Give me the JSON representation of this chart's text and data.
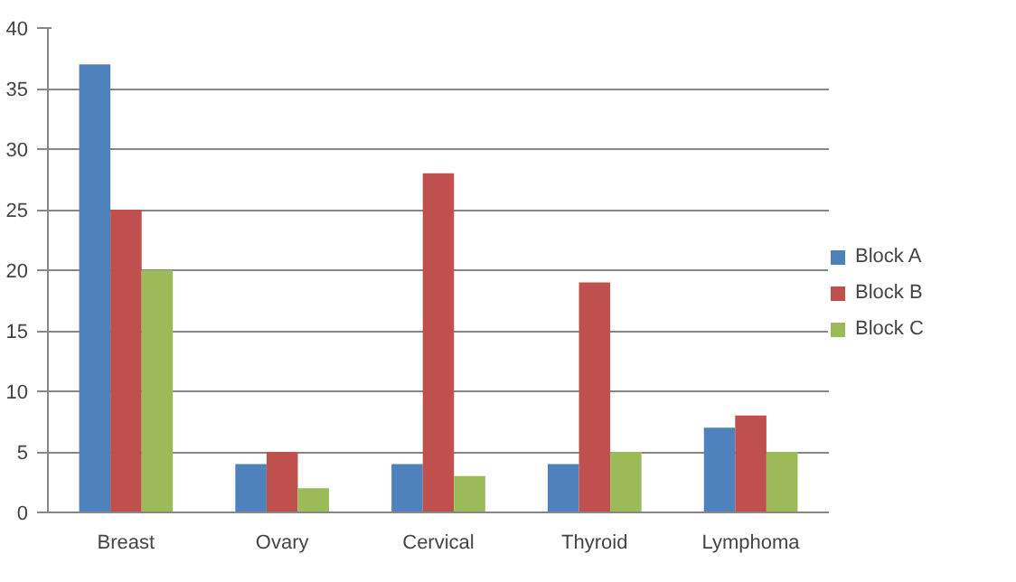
{
  "chart_data": {
    "type": "bar",
    "categories": [
      "Breast",
      "Ovary",
      "Cervical",
      "Thyroid",
      "Lymphoma"
    ],
    "series": [
      {
        "name": "Block A",
        "color": "#4f81bd",
        "values": [
          37,
          4,
          4,
          4,
          7
        ]
      },
      {
        "name": "Block B",
        "color": "#c0504d",
        "values": [
          25,
          5,
          28,
          19,
          8
        ]
      },
      {
        "name": "Block C",
        "color": "#9bbb59",
        "values": [
          20,
          2,
          3,
          5,
          5
        ]
      }
    ],
    "ylim": [
      0,
      40
    ],
    "yticks": [
      0,
      5,
      10,
      15,
      20,
      25,
      30,
      35,
      40
    ],
    "grid": "y",
    "legend": "right"
  }
}
